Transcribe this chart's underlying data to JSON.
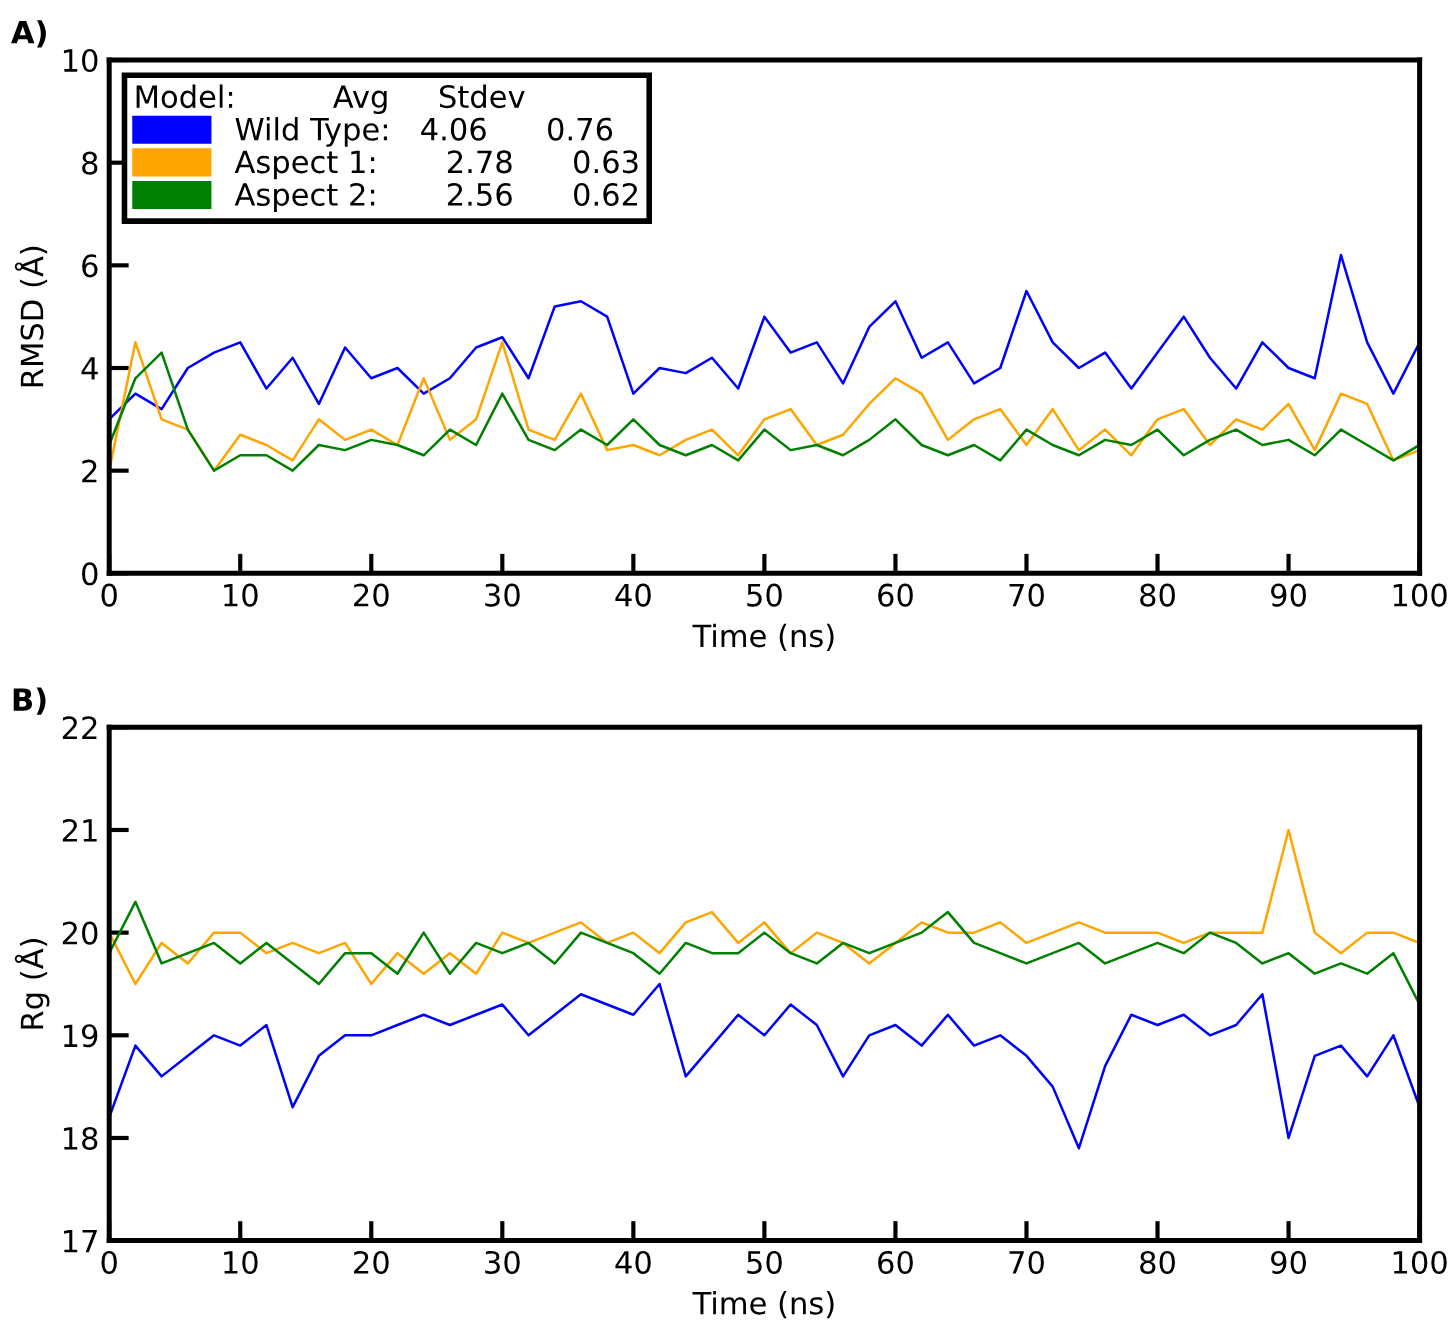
{
  "chart_data": [
    {
      "type": "line",
      "title": "A)",
      "xlabel": "Time (ns)",
      "ylabel": "RMSD (Å)",
      "xlim": [
        0,
        100
      ],
      "ylim": [
        0,
        10
      ],
      "xticks": [
        0,
        10,
        20,
        30,
        40,
        50,
        60,
        70,
        80,
        90,
        100
      ],
      "yticks": [
        0,
        2,
        4,
        6,
        8,
        10
      ],
      "grid": false,
      "legend": "top left",
      "legend_title": "Model:          Avg     Stdev",
      "marker": "none",
      "line_style": "solid",
      "x": [
        0,
        2,
        4,
        6,
        8,
        10,
        12,
        14,
        16,
        18,
        20,
        22,
        24,
        26,
        28,
        30,
        32,
        34,
        36,
        38,
        40,
        42,
        44,
        46,
        48,
        50,
        52,
        54,
        56,
        58,
        60,
        62,
        64,
        66,
        68,
        70,
        72,
        74,
        76,
        78,
        80,
        82,
        84,
        86,
        88,
        90,
        92,
        94,
        96,
        98,
        100
      ],
      "series": [
        {
          "name": "Wild Type:   4.06      0.76",
          "color": "#0000ff",
          "values": [
            3.0,
            3.5,
            3.2,
            4.0,
            4.3,
            4.5,
            3.6,
            4.2,
            3.3,
            4.4,
            3.8,
            4.0,
            3.5,
            3.8,
            4.4,
            4.6,
            3.8,
            5.2,
            5.3,
            5.0,
            3.5,
            4.0,
            3.9,
            4.2,
            3.6,
            5.0,
            4.3,
            4.5,
            3.7,
            4.8,
            5.3,
            4.2,
            4.5,
            3.7,
            4.0,
            5.5,
            4.5,
            4.0,
            4.3,
            3.6,
            4.3,
            5.0,
            4.2,
            3.6,
            4.5,
            4.0,
            3.8,
            6.2,
            4.5,
            3.5,
            4.5
          ]
        },
        {
          "name": "Aspect 1:       2.78      0.63",
          "color": "#ffa500",
          "values": [
            2.0,
            4.5,
            3.0,
            2.8,
            2.0,
            2.7,
            2.5,
            2.2,
            3.0,
            2.6,
            2.8,
            2.5,
            3.8,
            2.6,
            3.0,
            4.5,
            2.8,
            2.6,
            3.5,
            2.4,
            2.5,
            2.3,
            2.6,
            2.8,
            2.3,
            3.0,
            3.2,
            2.5,
            2.7,
            3.3,
            3.8,
            3.5,
            2.6,
            3.0,
            3.2,
            2.5,
            3.2,
            2.4,
            2.8,
            2.3,
            3.0,
            3.2,
            2.5,
            3.0,
            2.8,
            3.3,
            2.4,
            3.5,
            3.3,
            2.2,
            2.4
          ]
        },
        {
          "name": "Aspect 2:       2.56      0.62",
          "color": "#008000",
          "values": [
            2.5,
            3.8,
            4.3,
            2.8,
            2.0,
            2.3,
            2.3,
            2.0,
            2.5,
            2.4,
            2.6,
            2.5,
            2.3,
            2.8,
            2.5,
            3.5,
            2.6,
            2.4,
            2.8,
            2.5,
            3.0,
            2.5,
            2.3,
            2.5,
            2.2,
            2.8,
            2.4,
            2.5,
            2.3,
            2.6,
            3.0,
            2.5,
            2.3,
            2.5,
            2.2,
            2.8,
            2.5,
            2.3,
            2.6,
            2.5,
            2.8,
            2.3,
            2.6,
            2.8,
            2.5,
            2.6,
            2.3,
            2.8,
            2.5,
            2.2,
            2.5
          ]
        }
      ]
    },
    {
      "type": "line",
      "title": "B)",
      "xlabel": "Time (ns)",
      "ylabel": "Rg (Å)",
      "xlim": [
        0,
        100
      ],
      "ylim": [
        17,
        22
      ],
      "xticks": [
        0,
        10,
        20,
        30,
        40,
        50,
        60,
        70,
        80,
        90,
        100
      ],
      "yticks": [
        17,
        18,
        19,
        20,
        21,
        22
      ],
      "grid": false,
      "marker": "none",
      "line_style": "solid",
      "x": [
        0,
        2,
        4,
        6,
        8,
        10,
        12,
        14,
        16,
        18,
        20,
        22,
        24,
        26,
        28,
        30,
        32,
        34,
        36,
        38,
        40,
        42,
        44,
        46,
        48,
        50,
        52,
        54,
        56,
        58,
        60,
        62,
        64,
        66,
        68,
        70,
        72,
        74,
        76,
        78,
        80,
        82,
        84,
        86,
        88,
        90,
        92,
        94,
        96,
        98,
        100
      ],
      "series": [
        {
          "color": "#0000ff",
          "values": [
            18.2,
            18.9,
            18.6,
            18.8,
            19.0,
            18.9,
            19.1,
            18.3,
            18.8,
            19.0,
            19.0,
            19.1,
            19.2,
            19.1,
            19.2,
            19.3,
            19.0,
            19.2,
            19.4,
            19.3,
            19.2,
            19.5,
            18.6,
            18.9,
            19.2,
            19.0,
            19.3,
            19.1,
            18.6,
            19.0,
            19.1,
            18.9,
            19.2,
            18.9,
            19.0,
            18.8,
            18.5,
            17.9,
            18.7,
            19.2,
            19.1,
            19.2,
            19.0,
            19.1,
            19.4,
            18.0,
            18.8,
            18.9,
            18.6,
            19.0,
            18.3
          ]
        },
        {
          "color": "#ffa500",
          "values": [
            20.0,
            19.5,
            19.9,
            19.7,
            20.0,
            20.0,
            19.8,
            19.9,
            19.8,
            19.9,
            19.5,
            19.8,
            19.6,
            19.8,
            19.6,
            20.0,
            19.9,
            20.0,
            20.1,
            19.9,
            20.0,
            19.8,
            20.1,
            20.2,
            19.9,
            20.1,
            19.8,
            20.0,
            19.9,
            19.7,
            19.9,
            20.1,
            20.0,
            20.0,
            20.1,
            19.9,
            20.0,
            20.1,
            20.0,
            20.0,
            20.0,
            19.9,
            20.0,
            20.0,
            20.0,
            21.0,
            20.0,
            19.8,
            20.0,
            20.0,
            19.9
          ]
        },
        {
          "color": "#008000",
          "values": [
            19.8,
            20.3,
            19.7,
            19.8,
            19.9,
            19.7,
            19.9,
            19.7,
            19.5,
            19.8,
            19.8,
            19.6,
            20.0,
            19.6,
            19.9,
            19.8,
            19.9,
            19.7,
            20.0,
            19.9,
            19.8,
            19.6,
            19.9,
            19.8,
            19.8,
            20.0,
            19.8,
            19.7,
            19.9,
            19.8,
            19.9,
            20.0,
            20.2,
            19.9,
            19.8,
            19.7,
            19.8,
            19.9,
            19.7,
            19.8,
            19.9,
            19.8,
            20.0,
            19.9,
            19.7,
            19.8,
            19.6,
            19.7,
            19.6,
            19.8,
            19.3
          ]
        }
      ]
    }
  ]
}
